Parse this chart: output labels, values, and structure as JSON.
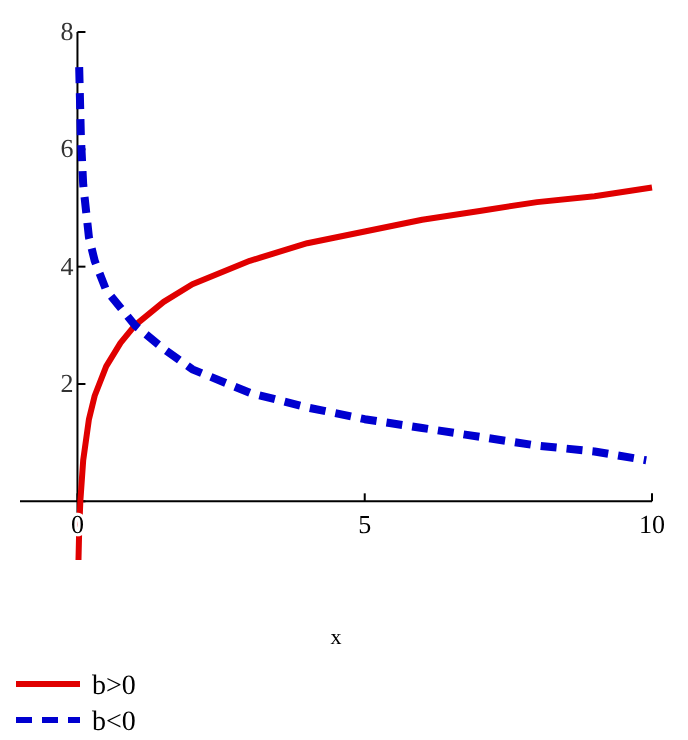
{
  "chart_data": {
    "type": "line",
    "xlabel": "x",
    "xlim": [
      -1,
      10
    ],
    "ylim": [
      -1,
      8
    ],
    "xticks": [
      0,
      5,
      10
    ],
    "yticks": [
      {
        "value": 0,
        "label": null
      },
      2,
      4,
      6,
      8
    ],
    "legend": "bottom",
    "grid": false,
    "marker": "none",
    "series": [
      {
        "name": "b>0",
        "color": "#e00000",
        "line_style": "solid",
        "x": [
          0.018,
          0.03,
          0.05,
          0.1,
          0.2,
          0.3,
          0.5,
          0.75,
          1,
          1.5,
          2,
          3,
          4,
          5,
          6,
          7,
          8,
          9,
          10
        ],
        "values": [
          -1,
          -0.5,
          0,
          0.7,
          1.4,
          1.8,
          2.3,
          2.7,
          3,
          3.4,
          3.7,
          4.1,
          4.4,
          4.6,
          4.8,
          4.95,
          5.1,
          5.2,
          5.35
        ]
      },
      {
        "name": "b<0",
        "color": "#0000d0",
        "line_style": "dashed",
        "x": [
          0.03,
          0.06,
          0.1,
          0.2,
          0.3,
          0.5,
          0.75,
          1,
          1.5,
          2,
          3,
          4,
          5,
          6,
          7,
          8,
          9,
          9.9
        ],
        "values": [
          7.4,
          6.2,
          5.4,
          4.5,
          4.1,
          3.6,
          3.3,
          3.0,
          2.6,
          2.25,
          1.85,
          1.6,
          1.4,
          1.25,
          1.1,
          0.95,
          0.85,
          0.7
        ]
      }
    ]
  }
}
